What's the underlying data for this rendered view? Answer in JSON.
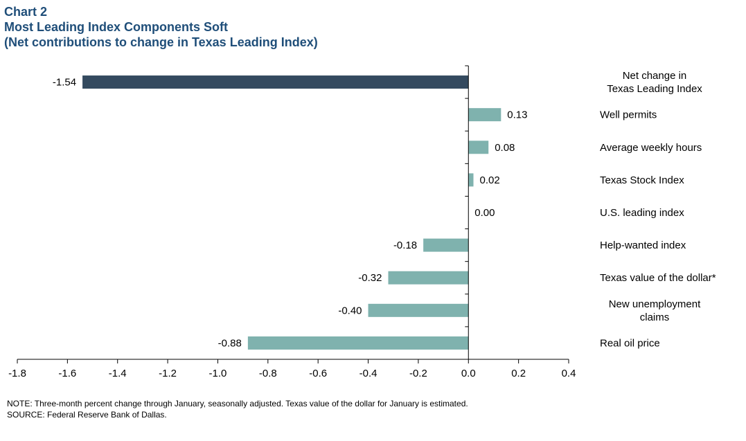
{
  "header": {
    "chart_number": "Chart 2",
    "title": "Most Leading Index Components Soft",
    "subtitle": "(Net contributions to change in Texas Leading Index)"
  },
  "footer": {
    "note": "NOTE:  Three-month percent change through January, seasonally adjusted. Texas value of the dollar for January is estimated.",
    "source": "SOURCE:  Federal Reserve Bank of Dallas."
  },
  "colors": {
    "title": "#1f4e79",
    "highlight_bar": "#344a5f",
    "component_bar": "#7fb2ae"
  },
  "chart_data": {
    "type": "bar",
    "orientation": "horizontal",
    "title": "Most Leading Index Components Soft",
    "subtitle": "(Net contributions to change in Texas Leading Index)",
    "categories": [
      [
        "Net change in",
        "Texas Leading Index"
      ],
      [
        "Well permits"
      ],
      [
        "Average weekly hours"
      ],
      [
        "Texas Stock Index"
      ],
      [
        "U.S. leading index"
      ],
      [
        "Help-wanted index"
      ],
      [
        "Texas value of the dollar*"
      ],
      [
        "New unemployment",
        "claims"
      ],
      [
        "Real oil price"
      ]
    ],
    "values": [
      -1.54,
      0.13,
      0.08,
      0.02,
      0.0,
      -0.18,
      -0.32,
      -0.4,
      -0.88
    ],
    "value_labels": [
      "-1.54",
      "0.13",
      "0.08",
      "0.02",
      "0.00",
      "-0.18",
      "-0.32",
      "-0.40",
      "-0.88"
    ],
    "highlight_index": 0,
    "xlim": [
      -1.8,
      0.4
    ],
    "x_ticks": [
      -1.8,
      -1.6,
      -1.4,
      -1.2,
      -1.0,
      -0.8,
      -0.6,
      -0.4,
      -0.2,
      0.0,
      0.2,
      0.4
    ],
    "x_tick_labels": [
      "-1.8",
      "-1.6",
      "-1.4",
      "-1.2",
      "-1.0",
      "-0.8",
      "-0.6",
      "-0.4",
      "-0.2",
      "0.0",
      "0.2",
      "0.4"
    ],
    "xlabel": "",
    "ylabel": "",
    "grid": false,
    "legend": "none"
  }
}
